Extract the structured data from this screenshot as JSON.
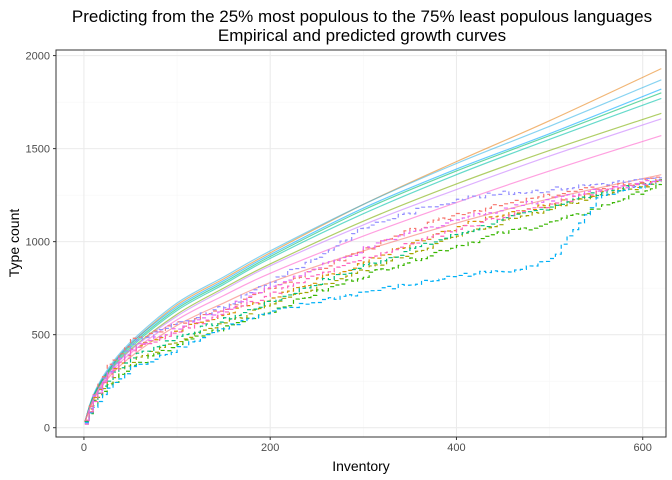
{
  "chart_data": {
    "type": "line",
    "title": "Predicting from the 25% most populous to the 75% least populous languages",
    "subtitle": "Empirical and predicted growth curves",
    "xlabel": "Inventory",
    "ylabel": "Type count",
    "xlim": [
      -30,
      625
    ],
    "ylim": [
      -50,
      2030
    ],
    "x_ticks": [
      0,
      200,
      400,
      600
    ],
    "y_ticks": [
      0,
      500,
      1000,
      1500,
      2000
    ],
    "x_tick_labels": [
      "0",
      "200",
      "400",
      "600"
    ],
    "y_tick_labels": [
      "0",
      "500",
      "1000",
      "1500",
      "2000"
    ],
    "grid": true,
    "legend": "none",
    "predicted": [
      {
        "color": "#E7861B",
        "x": [
          1,
          10,
          25,
          50,
          100,
          150,
          200,
          300,
          400,
          500,
          620
        ],
        "y": [
          30,
          170,
          300,
          450,
          660,
          800,
          940,
          1200,
          1430,
          1650,
          1930
        ]
      },
      {
        "color": "#39B6E8",
        "x": [
          1,
          10,
          25,
          50,
          100,
          150,
          200,
          300,
          400,
          500,
          620
        ],
        "y": [
          30,
          175,
          310,
          460,
          670,
          810,
          950,
          1200,
          1420,
          1620,
          1870
        ]
      },
      {
        "color": "#00A9FF",
        "x": [
          1,
          10,
          25,
          50,
          100,
          150,
          200,
          300,
          400,
          500,
          620
        ],
        "y": [
          30,
          170,
          300,
          450,
          650,
          790,
          930,
          1180,
          1390,
          1580,
          1820
        ]
      },
      {
        "color": "#00BE67",
        "x": [
          1,
          10,
          25,
          50,
          100,
          150,
          200,
          300,
          400,
          500,
          620
        ],
        "y": [
          30,
          165,
          295,
          440,
          640,
          780,
          920,
          1170,
          1380,
          1570,
          1800
        ]
      },
      {
        "color": "#00C1A9",
        "x": [
          1,
          10,
          25,
          50,
          100,
          150,
          200,
          300,
          400,
          500,
          620
        ],
        "y": [
          30,
          165,
          290,
          430,
          630,
          770,
          910,
          1150,
          1360,
          1550,
          1770
        ]
      },
      {
        "color": "#7CAE00",
        "x": [
          1,
          10,
          25,
          50,
          100,
          150,
          200,
          300,
          400,
          500,
          620
        ],
        "y": [
          30,
          160,
          285,
          420,
          610,
          750,
          880,
          1110,
          1310,
          1490,
          1690
        ]
      },
      {
        "color": "#C77CFF",
        "x": [
          1,
          10,
          25,
          50,
          100,
          150,
          200,
          300,
          400,
          500,
          620
        ],
        "y": [
          30,
          155,
          280,
          415,
          600,
          740,
          870,
          1090,
          1280,
          1460,
          1660
        ]
      },
      {
        "color": "#FF61CC",
        "x": [
          1,
          10,
          25,
          50,
          100,
          150,
          200,
          300,
          400,
          500,
          620
        ],
        "y": [
          30,
          150,
          270,
          400,
          580,
          710,
          830,
          1030,
          1210,
          1380,
          1570
        ]
      },
      {
        "color": "#F8766D",
        "x": [
          1,
          10,
          25,
          50,
          100,
          150,
          200,
          300,
          400,
          500,
          620
        ],
        "y": [
          30,
          145,
          260,
          380,
          550,
          670,
          780,
          950,
          1100,
          1230,
          1360
        ]
      }
    ],
    "empirical": [
      {
        "color": "#F8766D",
        "x": [
          1,
          10,
          25,
          50,
          100,
          150,
          200,
          250,
          300,
          350,
          400,
          450,
          500,
          550,
          620
        ],
        "y": [
          30,
          180,
          330,
          470,
          560,
          640,
          760,
          850,
          960,
          1060,
          1150,
          1200,
          1250,
          1290,
          1340
        ]
      },
      {
        "color": "#D89000",
        "x": [
          1,
          10,
          25,
          50,
          100,
          150,
          200,
          250,
          300,
          350,
          400,
          450,
          500,
          550,
          620
        ],
        "y": [
          30,
          160,
          290,
          420,
          530,
          610,
          700,
          800,
          890,
          990,
          1080,
          1150,
          1200,
          1260,
          1330
        ]
      },
      {
        "color": "#A3A500",
        "x": [
          1,
          10,
          25,
          50,
          100,
          150,
          200,
          250,
          300,
          350,
          400,
          450,
          500,
          550,
          620
        ],
        "y": [
          30,
          140,
          250,
          360,
          470,
          560,
          660,
          760,
          850,
          940,
          1030,
          1110,
          1180,
          1250,
          1320
        ]
      },
      {
        "color": "#39B600",
        "x": [
          1,
          10,
          25,
          50,
          100,
          150,
          200,
          250,
          300,
          350,
          400,
          450,
          500,
          550,
          620
        ],
        "y": [
          30,
          130,
          230,
          330,
          450,
          540,
          630,
          730,
          820,
          900,
          980,
          1050,
          1100,
          1180,
          1310
        ]
      },
      {
        "color": "#00BF7D",
        "x": [
          1,
          10,
          25,
          50,
          100,
          150,
          200,
          250,
          300,
          350,
          400,
          450,
          500,
          550,
          620
        ],
        "y": [
          30,
          150,
          260,
          380,
          490,
          580,
          680,
          780,
          870,
          960,
          1040,
          1120,
          1190,
          1260,
          1330
        ]
      },
      {
        "color": "#00B0F6",
        "x": [
          1,
          10,
          25,
          50,
          100,
          150,
          200,
          250,
          300,
          350,
          400,
          450,
          500,
          550,
          620
        ],
        "y": [
          30,
          110,
          210,
          320,
          430,
          540,
          620,
          680,
          730,
          770,
          820,
          840,
          900,
          1230,
          1330
        ]
      },
      {
        "color": "#9590FF",
        "x": [
          1,
          10,
          25,
          50,
          100,
          150,
          200,
          250,
          300,
          350,
          400,
          450,
          500,
          550,
          620
        ],
        "y": [
          30,
          170,
          310,
          450,
          560,
          650,
          790,
          920,
          1080,
          1160,
          1230,
          1260,
          1280,
          1310,
          1340
        ]
      },
      {
        "color": "#E76BF3",
        "x": [
          1,
          10,
          25,
          50,
          100,
          150,
          200,
          250,
          300,
          350,
          400,
          450,
          500,
          550,
          620
        ],
        "y": [
          30,
          160,
          290,
          430,
          540,
          640,
          760,
          860,
          960,
          1050,
          1120,
          1180,
          1230,
          1280,
          1330
        ]
      },
      {
        "color": "#FF62BC",
        "x": [
          1,
          10,
          25,
          50,
          100,
          150,
          200,
          250,
          300,
          350,
          400,
          450,
          500,
          550,
          620
        ],
        "y": [
          30,
          150,
          280,
          410,
          520,
          620,
          720,
          820,
          910,
          990,
          1070,
          1140,
          1200,
          1270,
          1330
        ]
      }
    ]
  }
}
